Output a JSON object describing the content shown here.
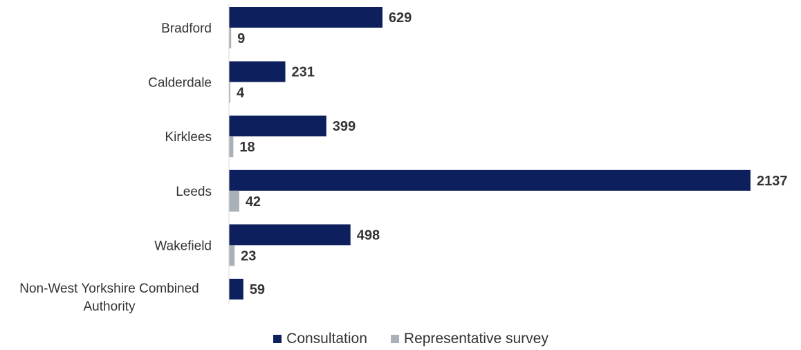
{
  "chart_data": {
    "type": "bar",
    "orientation": "horizontal",
    "categories": [
      "Bradford",
      "Calderdale",
      "Kirklees",
      "Leeds",
      "Wakefield",
      "Non-West Yorkshire Combined Authority"
    ],
    "series": [
      {
        "name": "Consultation",
        "color": "#0d1f5c",
        "values": [
          629,
          231,
          399,
          2137,
          498,
          59
        ]
      },
      {
        "name": "Representative survey",
        "color": "#a9b0b8",
        "values": [
          9,
          4,
          18,
          42,
          23,
          null
        ]
      }
    ],
    "title": "",
    "xlabel": "",
    "ylabel": "",
    "legend": "bottom",
    "grid": false
  }
}
